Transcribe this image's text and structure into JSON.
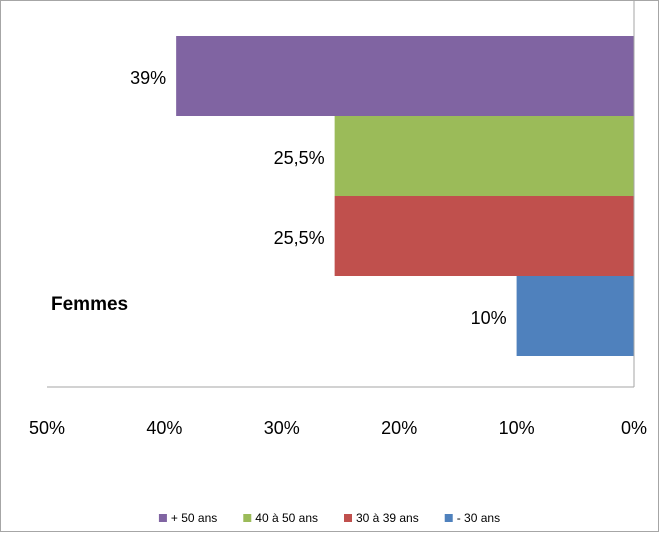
{
  "chart_data": {
    "type": "bar",
    "orientation": "horizontal",
    "x_axis_reversed": true,
    "annotation": "Femmes",
    "categories": [
      "+ 50 ans",
      "40 à 50 ans",
      "30 à 39 ans",
      "- 30 ans"
    ],
    "values": [
      39,
      25.5,
      25.5,
      10
    ],
    "data_labels": [
      "39%",
      "25,5%",
      "25,5%",
      "10%"
    ],
    "colors": [
      "#8064a2",
      "#9bbb59",
      "#c0504d",
      "#4f81bd"
    ],
    "xlim": [
      0,
      50
    ],
    "x_ticks": [
      50,
      40,
      30,
      20,
      10,
      0
    ],
    "x_tick_labels": [
      "50%",
      "40%",
      "30%",
      "20%",
      "10%",
      "0%"
    ],
    "legend": {
      "position": "bottom",
      "entries": [
        "+ 50 ans",
        "40 à 50 ans",
        "30 à 39 ans",
        "- 30 ans"
      ]
    },
    "grid": false
  }
}
